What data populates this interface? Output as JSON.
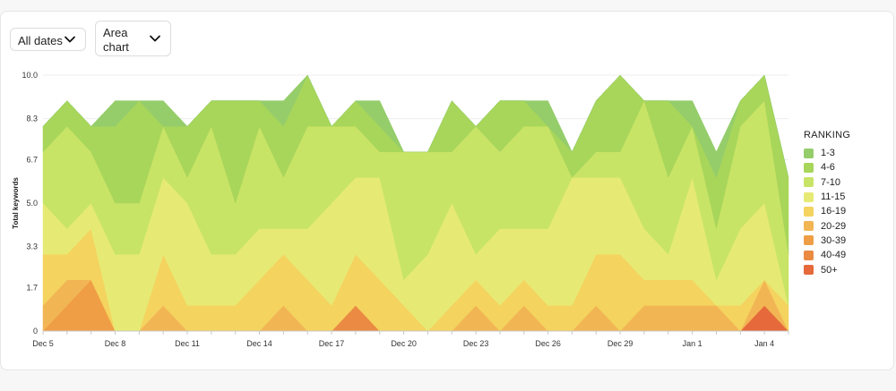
{
  "controls": {
    "date_filter": "All dates",
    "chart_type": "Area chart"
  },
  "icons": {
    "dropdown": "chevron-down-icon"
  },
  "chart_data": {
    "type": "area",
    "stacked": true,
    "ylabel": "Total keywords",
    "xlabel": "",
    "ylim": [
      0,
      10
    ],
    "yticks": [
      "0",
      "1.7",
      "3.3",
      "5.0",
      "6.7",
      "8.3",
      "10.0"
    ],
    "ytick_values": [
      0,
      1.7,
      3.3,
      5.0,
      6.7,
      8.3,
      10.0
    ],
    "x_tick_labels": [
      "Dec 5",
      "Dec 8",
      "Dec 11",
      "Dec 14",
      "Dec 17",
      "Dec 20",
      "Dec 23",
      "Dec 26",
      "Dec 29",
      "Jan 1",
      "Jan 4"
    ],
    "x_tick_index": [
      0,
      3,
      6,
      9,
      12,
      15,
      18,
      21,
      24,
      27,
      30
    ],
    "dates": [
      "Dec 5",
      "Dec 6",
      "Dec 7",
      "Dec 8",
      "Dec 9",
      "Dec 10",
      "Dec 11",
      "Dec 12",
      "Dec 13",
      "Dec 14",
      "Dec 15",
      "Dec 16",
      "Dec 17",
      "Dec 18",
      "Dec 19",
      "Dec 20",
      "Dec 21",
      "Dec 22",
      "Dec 23",
      "Dec 24",
      "Dec 25",
      "Dec 26",
      "Dec 27",
      "Dec 28",
      "Dec 29",
      "Dec 30",
      "Dec 31",
      "Jan 1",
      "Jan 2",
      "Jan 3",
      "Jan 4",
      "Jan 5"
    ],
    "grid": true,
    "legend_title": "RANKING",
    "legend_position": "right",
    "series": [
      {
        "name": "50+",
        "color": "#e5693a",
        "values": [
          0,
          0,
          0,
          0,
          0,
          0,
          0,
          0,
          0,
          0,
          0,
          0,
          0,
          0,
          0,
          0,
          0,
          0,
          0,
          0,
          0,
          0,
          0,
          0,
          0,
          0,
          0,
          0,
          0,
          0,
          1,
          0
        ]
      },
      {
        "name": "40-49",
        "color": "#ea8a43",
        "values": [
          0,
          0,
          0,
          0,
          0,
          0,
          0,
          0,
          0,
          0,
          0,
          0,
          0,
          1,
          0,
          0,
          0,
          0,
          0,
          0,
          0,
          0,
          0,
          0,
          0,
          0,
          0,
          0,
          0,
          0,
          0,
          0
        ]
      },
      {
        "name": "30-39",
        "color": "#ef9e45",
        "values": [
          0,
          1,
          2,
          0,
          0,
          0,
          0,
          0,
          0,
          0,
          0,
          0,
          0,
          0,
          0,
          0,
          0,
          0,
          0,
          0,
          0,
          0,
          0,
          0,
          0,
          0,
          0,
          0,
          0,
          0,
          0,
          0
        ]
      },
      {
        "name": "20-29",
        "color": "#f2b554",
        "values": [
          1,
          1,
          0,
          0,
          0,
          1,
          0,
          0,
          0,
          0,
          1,
          0,
          0,
          0,
          0,
          0,
          0,
          0,
          1,
          0,
          1,
          0,
          0,
          1,
          0,
          1,
          1,
          1,
          1,
          0,
          1,
          0
        ]
      },
      {
        "name": "16-19",
        "color": "#f4d35f",
        "values": [
          2,
          1,
          2,
          0,
          0,
          2,
          1,
          1,
          1,
          2,
          2,
          2,
          1,
          2,
          2,
          1,
          0,
          1,
          1,
          1,
          1,
          1,
          1,
          2,
          3,
          1,
          1,
          1,
          0,
          1,
          0,
          1
        ]
      },
      {
        "name": "11-15",
        "color": "#e6ea74",
        "values": [
          2,
          1,
          1,
          3,
          3,
          3,
          4,
          2,
          2,
          2,
          1,
          2,
          4,
          3,
          4,
          1,
          3,
          4,
          1,
          3,
          2,
          3,
          5,
          3,
          3,
          2,
          1,
          4,
          1,
          3,
          3,
          0
        ]
      },
      {
        "name": "7-10",
        "color": "#c8e466",
        "values": [
          2,
          4,
          2,
          2,
          2,
          2,
          1,
          5,
          2,
          4,
          2,
          4,
          3,
          2,
          1,
          5,
          4,
          2,
          5,
          3,
          4,
          4,
          0,
          1,
          1,
          5,
          3,
          2,
          2,
          4,
          4,
          2
        ]
      },
      {
        "name": "4-6",
        "color": "#a8d65a",
        "values": [
          1,
          1,
          1,
          3,
          4,
          0,
          2,
          1,
          4,
          1,
          2,
          2,
          0,
          1,
          1,
          0,
          0,
          2,
          0,
          2,
          1,
          0,
          1,
          2,
          3,
          0,
          3,
          0,
          2,
          1,
          1,
          3
        ]
      },
      {
        "name": "1-3",
        "color": "#94cd6a",
        "values": [
          0,
          0,
          0,
          1,
          0,
          1,
          0,
          0,
          0,
          0,
          1,
          0,
          0,
          0,
          1,
          0,
          0,
          0,
          0,
          0,
          0,
          1,
          0,
          0,
          0,
          0,
          0,
          1,
          1,
          0,
          0,
          0
        ]
      }
    ]
  }
}
